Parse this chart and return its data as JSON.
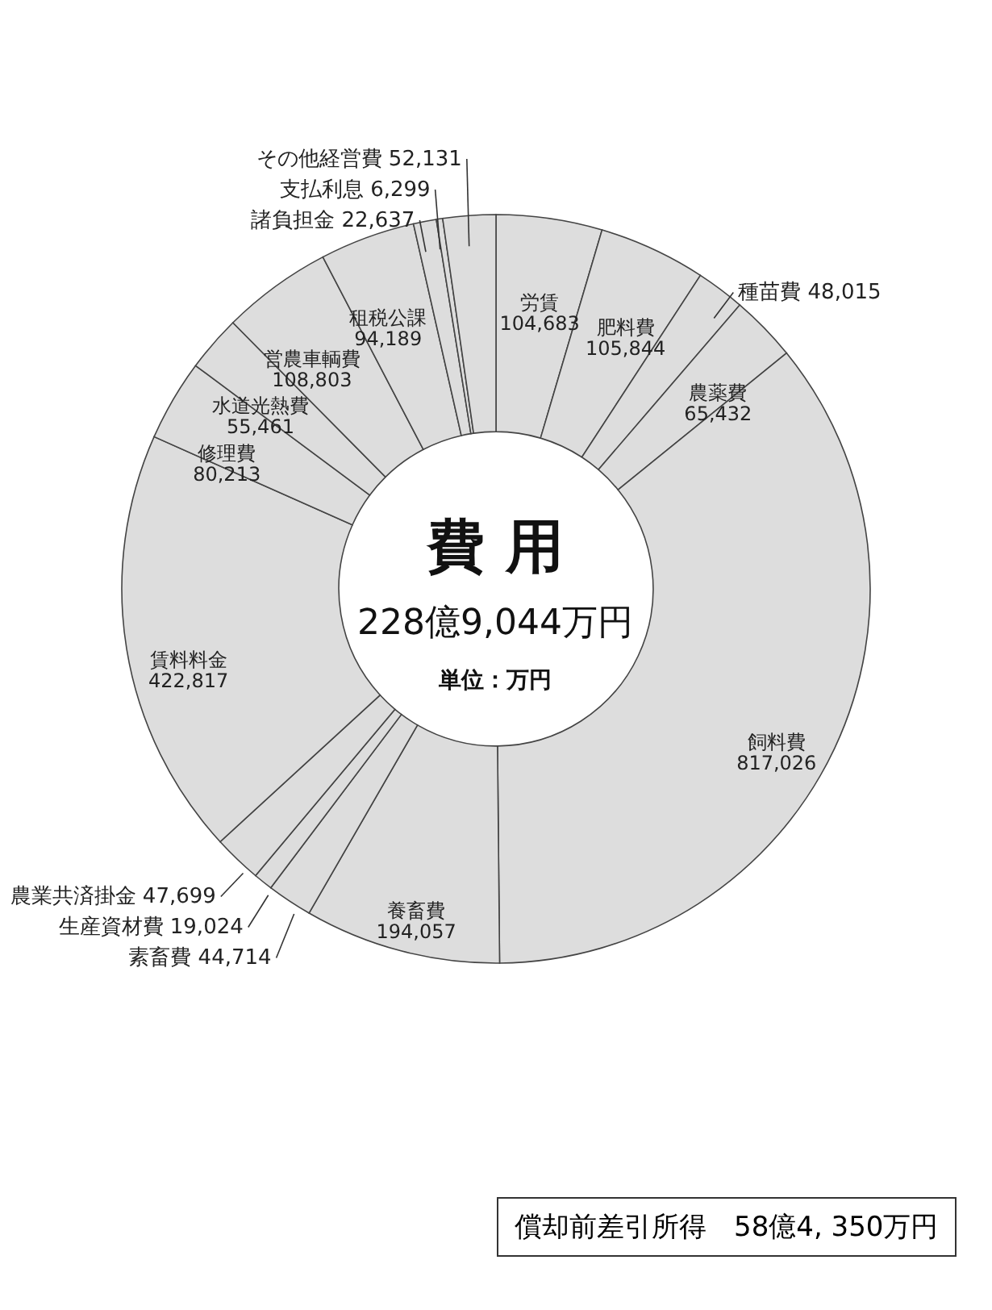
{
  "chart_data": {
    "type": "donut",
    "title": "費 用",
    "subtitle": "228億9,044万円",
    "categories": [
      "労賃",
      "肥料費",
      "種苗費",
      "農薬費",
      "飼料費",
      "養畜費",
      "素畜費",
      "生産資材費",
      "農業共済掛金",
      "賃料料金",
      "修理費",
      "水道光熱費",
      "営農車輌費",
      "租税公課",
      "諸負担金",
      "支払利息",
      "その他経営費"
    ],
    "values": [
      104683,
      105844,
      48015,
      65432,
      817026,
      194057,
      44714,
      19024,
      47699,
      422817,
      80213,
      55461,
      108803,
      94189,
      22637,
      6299,
      52131
    ],
    "colors": [
      "#dddddd",
      "#dddddd",
      "#dddddd",
      "#dddddd",
      "#dddddd",
      "#dddddd",
      "#dddddd",
      "#dddddd",
      "#dddddd",
      "#dddddd",
      "#dddddd",
      "#dddddd",
      "#dddddd",
      "#dddddd",
      "#dddddd",
      "#dddddd",
      "#dddddd"
    ],
    "value_labels": [
      "104,683",
      "105,844",
      "48,015",
      "65,432",
      "817,026",
      "194,057",
      "44,714",
      "19,024",
      "47,699",
      "422,817",
      "80,213",
      "55,461",
      "108,803",
      "94,189",
      "22,637",
      "6,299",
      "52,131"
    ],
    "annotations": [
      "単位：万円",
      "償却前差引所得　58億4, 350万円"
    ]
  }
}
